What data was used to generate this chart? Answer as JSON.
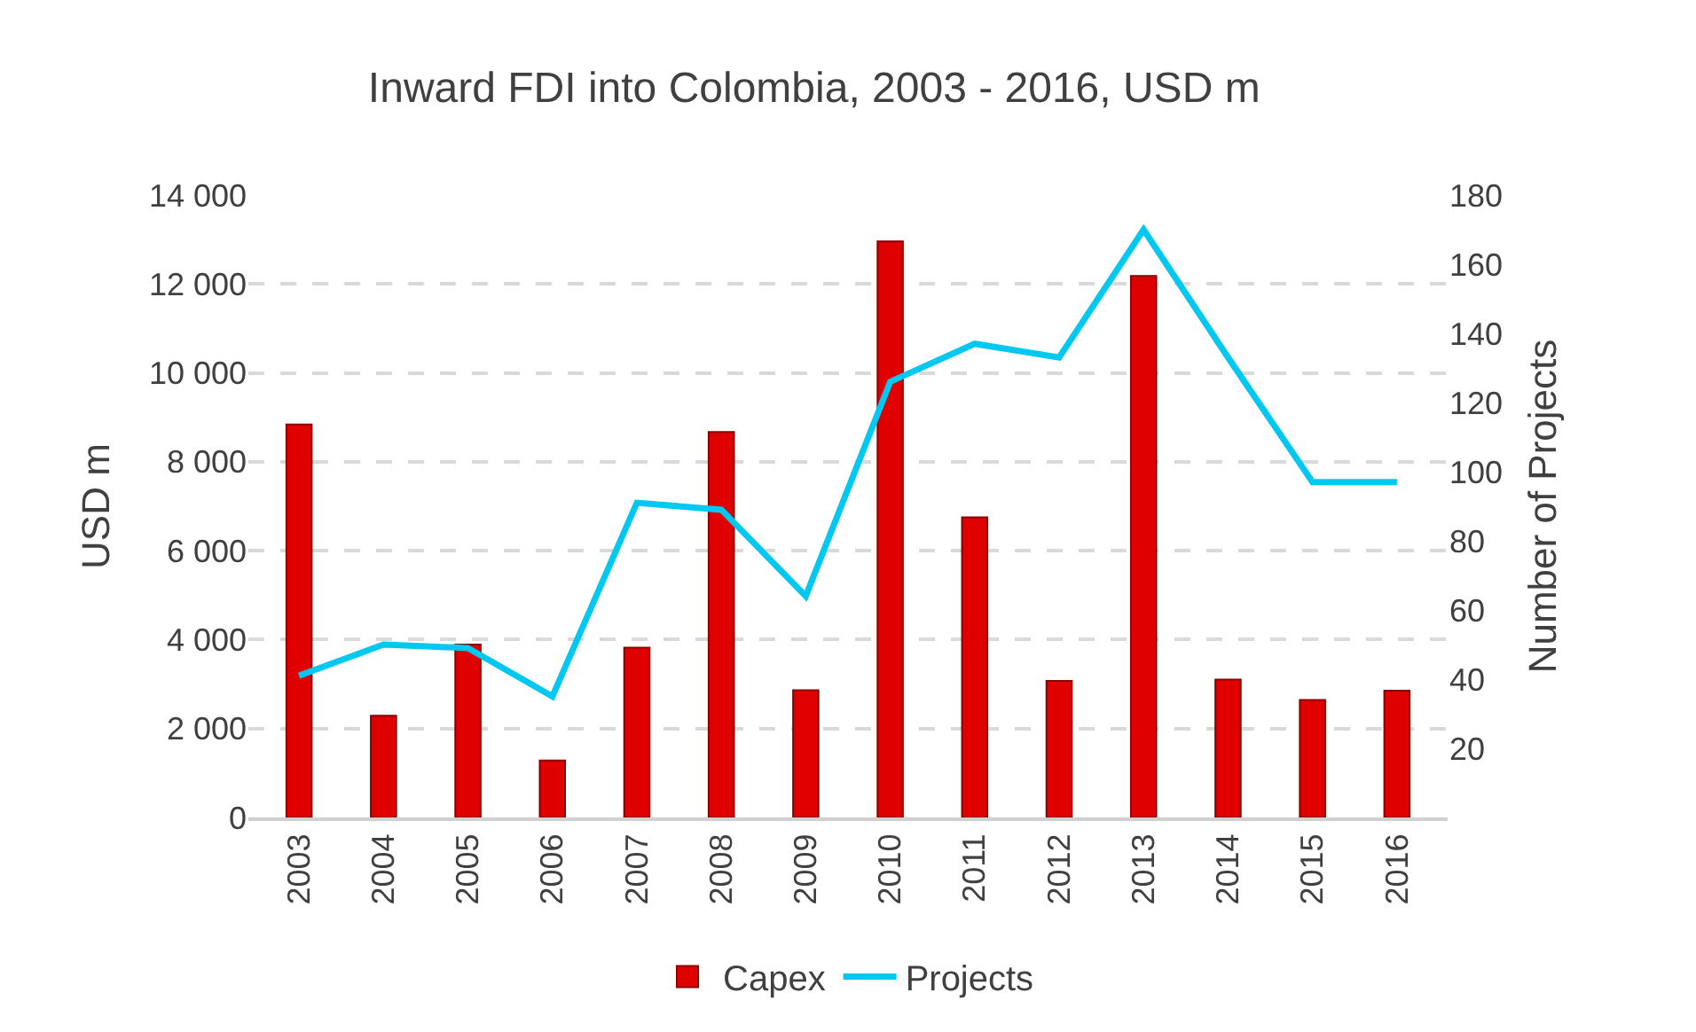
{
  "chart_data": {
    "type": "bar",
    "title": "Inward FDI into Colombia, 2003 - 2016, USD m",
    "ylabel": "USD m",
    "y2label": "Number of Projects",
    "categories": [
      "2003",
      "2004",
      "2005",
      "2006",
      "2007",
      "2008",
      "2009",
      "2010",
      "2011",
      "2012",
      "2013",
      "2014",
      "2015",
      "2016"
    ],
    "series": [
      {
        "name": "Capex",
        "color": "#e00000",
        "values": [
          8840,
          2290,
          3890,
          1280,
          3820,
          8670,
          2860,
          12960,
          6750,
          3070,
          12180,
          3100,
          2640,
          2850
        ]
      },
      {
        "name": "Projects",
        "type": "line",
        "axis": "y2",
        "color": "#00c8f0",
        "values": [
          41,
          50,
          49,
          35,
          91,
          89,
          64,
          126,
          137,
          133,
          170,
          133,
          97,
          97
        ]
      }
    ],
    "ylim": [
      0,
      14000
    ],
    "yticks": [
      {
        "value": 0,
        "label": "0"
      },
      {
        "value": 2000,
        "label": "2 000"
      },
      {
        "value": 4000,
        "label": "4 000"
      },
      {
        "value": 6000,
        "label": "6 000"
      },
      {
        "value": 8000,
        "label": "8 000"
      },
      {
        "value": 10000,
        "label": "10 000"
      },
      {
        "value": 12000,
        "label": "12 000"
      },
      {
        "value": 14000,
        "label": "14 000"
      }
    ],
    "y2lim": [
      0,
      180
    ],
    "y2ticks": [
      20,
      40,
      60,
      80,
      100,
      120,
      140,
      160,
      180
    ],
    "grid": "y",
    "legend": "bottom",
    "marker": "none",
    "line_style": "solid"
  }
}
